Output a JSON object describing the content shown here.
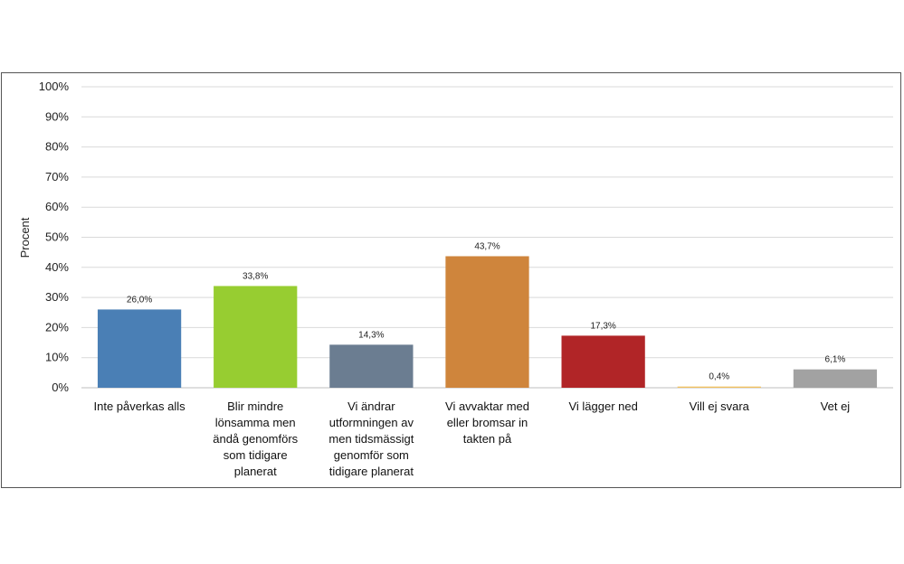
{
  "chart_data": {
    "type": "bar",
    "ylabel": "Procent",
    "ylim": [
      0,
      100
    ],
    "yticks": [
      "0%",
      "10%",
      "20%",
      "30%",
      "40%",
      "50%",
      "60%",
      "70%",
      "80%",
      "90%",
      "100%"
    ],
    "grid": true,
    "categories": [
      [
        "Inte påverkas alls"
      ],
      [
        "Blir mindre",
        "lönsamma men",
        "ändå genomförs",
        "som tidigare",
        "planerat"
      ],
      [
        "Vi ändrar",
        "utformningen av",
        "men tidsmässigt",
        "genomför som",
        "tidigare planerat"
      ],
      [
        "Vi avvaktar med",
        "eller bromsar in",
        "takten på"
      ],
      [
        "Vi lägger ned"
      ],
      [
        "Vill ej svara"
      ],
      [
        "Vet ej"
      ]
    ],
    "values": [
      26.0,
      33.8,
      14.3,
      43.7,
      17.3,
      0.4,
      6.1
    ],
    "data_labels": [
      "26,0%",
      "33,8%",
      "14,3%",
      "43,7%",
      "17,3%",
      "0,4%",
      "6,1%"
    ],
    "colors": [
      "#4a7fb5",
      "#97cd31",
      "#6b7d91",
      "#cf853c",
      "#b12527",
      "#f0c060",
      "#a2a2a2"
    ]
  }
}
